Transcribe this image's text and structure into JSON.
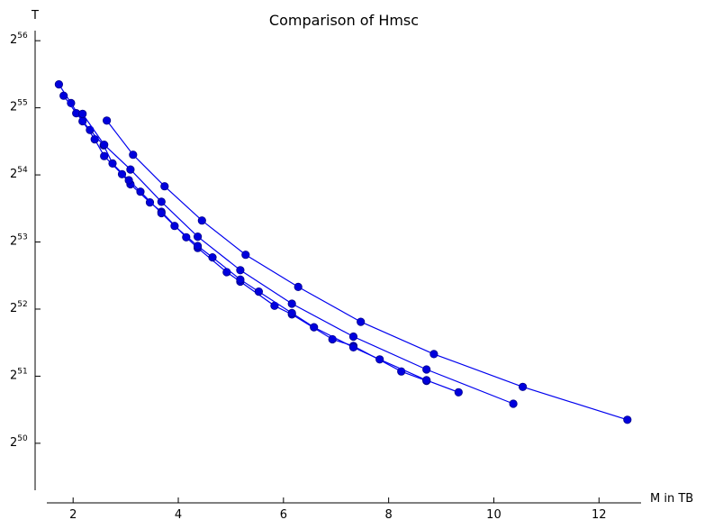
{
  "chart_data": {
    "type": "line",
    "title": "Comparison of Hmsc",
    "xlabel": "M in TB",
    "ylabel": "T",
    "xlim": [
      1.5,
      12.8
    ],
    "ylim_log2": [
      49.3,
      56.15
    ],
    "y_scale": "log2",
    "grid": false,
    "legend": "none",
    "x_ticks": [
      2,
      4,
      6,
      8,
      10,
      12
    ],
    "x_tick_labels": [
      "2",
      "4",
      "6",
      "8",
      "10",
      "12"
    ],
    "y_ticks_log2": [
      50,
      51,
      52,
      53,
      54,
      55,
      56
    ],
    "y_tick_base": "2",
    "y_tick_exponents": [
      "50",
      "51",
      "52",
      "53",
      "54",
      "55",
      "56"
    ],
    "color": "#0000dd",
    "series": [
      {
        "x": [
          1.73,
          1.96,
          2.18,
          2.41,
          2.59,
          2.93,
          3.09,
          3.46,
          3.68,
          4.15,
          4.37,
          4.92,
          5.18,
          5.83,
          6.16,
          6.93,
          7.33,
          8.24,
          8.72
        ],
        "y_log2": [
          55.35,
          55.07,
          54.8,
          54.53,
          54.28,
          54.01,
          53.86,
          53.59,
          53.45,
          53.07,
          52.91,
          52.55,
          52.41,
          52.05,
          51.92,
          51.55,
          51.45,
          51.07,
          50.93
        ]
      },
      {
        "x": [
          1.82,
          2.06,
          2.32,
          2.58,
          2.75,
          3.06,
          3.28,
          3.68,
          3.93,
          4.37,
          4.65,
          5.18,
          5.53,
          6.16,
          6.58,
          7.33,
          7.83,
          8.72,
          9.33
        ],
        "y_log2": [
          55.18,
          54.92,
          54.67,
          54.44,
          54.17,
          53.92,
          53.75,
          53.43,
          53.24,
          52.94,
          52.77,
          52.44,
          52.26,
          51.94,
          51.73,
          51.43,
          51.25,
          50.94,
          50.76
        ]
      },
      {
        "x": [
          2.18,
          2.59,
          3.09,
          3.68,
          4.37,
          5.18,
          6.16,
          7.33,
          8.72,
          10.37
        ],
        "y_log2": [
          54.91,
          54.45,
          54.08,
          53.6,
          53.08,
          52.58,
          52.08,
          51.59,
          51.1,
          50.59
        ]
      },
      {
        "x": [
          2.64,
          3.14,
          3.74,
          4.45,
          5.28,
          6.28,
          7.47,
          8.86,
          10.55,
          12.54
        ],
        "y_log2": [
          54.81,
          54.3,
          53.83,
          53.32,
          52.81,
          52.33,
          51.81,
          51.33,
          50.84,
          50.35
        ]
      }
    ]
  }
}
